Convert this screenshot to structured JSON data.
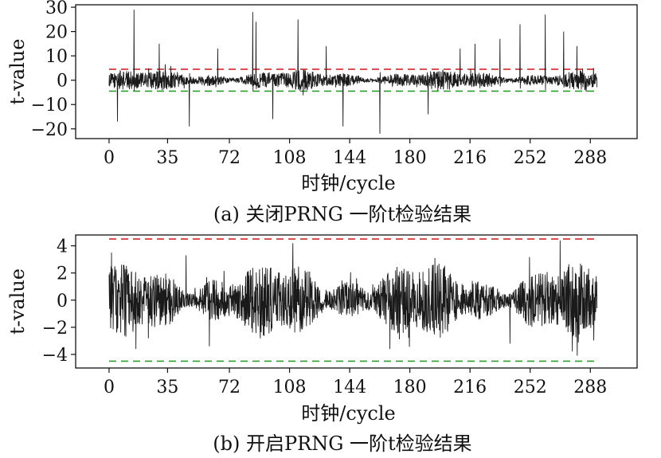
{
  "chart_data": [
    {
      "type": "line",
      "caption": "(a) 关闭PRNG 一阶t检验结果",
      "xlabel": "时钟/cycle",
      "ylabel": "t-value",
      "x_ticks": [
        "0",
        "35",
        "72",
        "108",
        "144",
        "180",
        "216",
        "252",
        "288"
      ],
      "y_ticks": [
        "30",
        "20",
        "10",
        "0",
        "−10",
        "−20"
      ],
      "xlim": [
        -20,
        316
      ],
      "ylim": [
        -24,
        31
      ],
      "thresholds": [
        {
          "value": 4.5,
          "color": "#d62728"
        },
        {
          "value": -4.5,
          "color": "#2ca02c"
        }
      ],
      "series": [
        {
          "color": "#1a1a1a",
          "noise_amplitude": 3.5,
          "x_range": [
            0,
            292
          ],
          "peaks": [
            [
              15,
              29
            ],
            [
              86,
              28
            ],
            [
              88,
              24
            ],
            [
              113,
              25
            ],
            [
              140,
              -19
            ],
            [
              162,
              -22
            ],
            [
              261,
              27
            ],
            [
              246,
              23
            ],
            [
              272,
              20
            ],
            [
              48,
              -19
            ],
            [
              5,
              -17
            ],
            [
              30,
              15
            ],
            [
              65,
              13
            ],
            [
              210,
              13
            ],
            [
              219,
              15
            ],
            [
              234,
              17
            ],
            [
              280,
              14
            ],
            [
              98,
              -16
            ],
            [
              191,
              -14
            ],
            [
              130,
              14
            ]
          ]
        }
      ]
    },
    {
      "type": "line",
      "caption": "(b) 开启PRNG 一阶t检验结果",
      "xlabel": "时钟/cycle",
      "ylabel": "t-value",
      "x_ticks": [
        "0",
        "35",
        "72",
        "108",
        "144",
        "180",
        "216",
        "252",
        "288"
      ],
      "y_ticks": [
        "4",
        "2",
        "0",
        "−2",
        "−4"
      ],
      "xlim": [
        -20,
        316
      ],
      "ylim": [
        -5,
        4.8
      ],
      "thresholds": [
        {
          "value": 4.5,
          "color": "#d62728"
        },
        {
          "value": -4.5,
          "color": "#2ca02c"
        }
      ],
      "series": [
        {
          "color": "#1a1a1a",
          "noise_amplitude": 2.3,
          "x_range": [
            0,
            292
          ],
          "peaks": [
            [
              110,
              4.2
            ],
            [
              270,
              4.4
            ],
            [
              168,
              -3.6
            ],
            [
              60,
              -3.4
            ],
            [
              16,
              -3.6
            ],
            [
              240,
              -3.2
            ],
            [
              46,
              3.3
            ],
            [
              195,
              3.1
            ]
          ]
        }
      ]
    }
  ]
}
